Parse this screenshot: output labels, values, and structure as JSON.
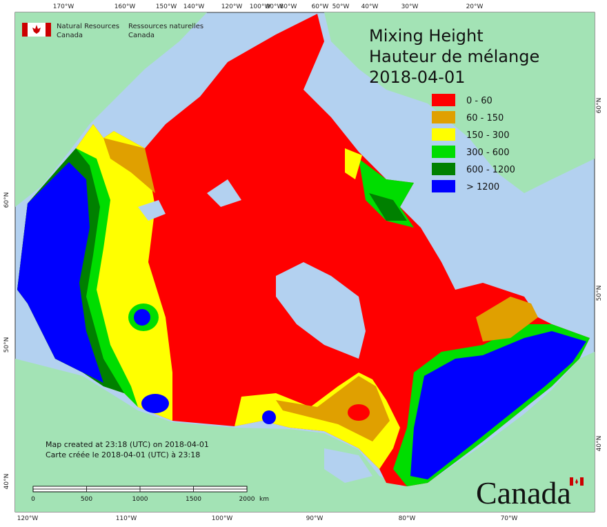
{
  "header": {
    "agency_en": "Natural Resources",
    "agency_en_country": "Canada",
    "agency_fr": "Ressources naturelles",
    "agency_fr_country": "Canada"
  },
  "title": {
    "line1": "Mixing Height",
    "line2": "Hauteur de mélange",
    "date": "2018-04-01"
  },
  "legend": [
    {
      "label": "0 - 60",
      "color": "#ff0000"
    },
    {
      "label": "60 - 150",
      "color": "#e0a000"
    },
    {
      "label": "150 - 300",
      "color": "#ffff00"
    },
    {
      "label": "300 - 600",
      "color": "#00dd00"
    },
    {
      "label": "600 - 1200",
      "color": "#008000"
    },
    {
      "label": "> 1200",
      "color": "#0000ff"
    }
  ],
  "top_labels": [
    "170°W",
    "160°W",
    "150°W",
    "140°W",
    "120°W",
    "100°W",
    "90°W",
    "80°W",
    "60°W",
    "50°W",
    "40°W",
    "30°W",
    "20°W"
  ],
  "bottom_labels": [
    "120°W",
    "110°W",
    "100°W",
    "90°W",
    "80°W",
    "70°W"
  ],
  "left_labels": [
    "60°N",
    "50°N",
    "40°N"
  ],
  "right_labels": [
    "60°N",
    "50°N",
    "40°N"
  ],
  "credits": [
    "Map created at 23:18 (UTC) on 2018-04-01",
    "Carte créée le 2018-04-01 (UTC) à 23:18"
  ],
  "scale_bar": {
    "labels": [
      "0",
      "500",
      "1000",
      "1500",
      "2000"
    ],
    "unit": "km"
  },
  "wordmark": "Canada"
}
